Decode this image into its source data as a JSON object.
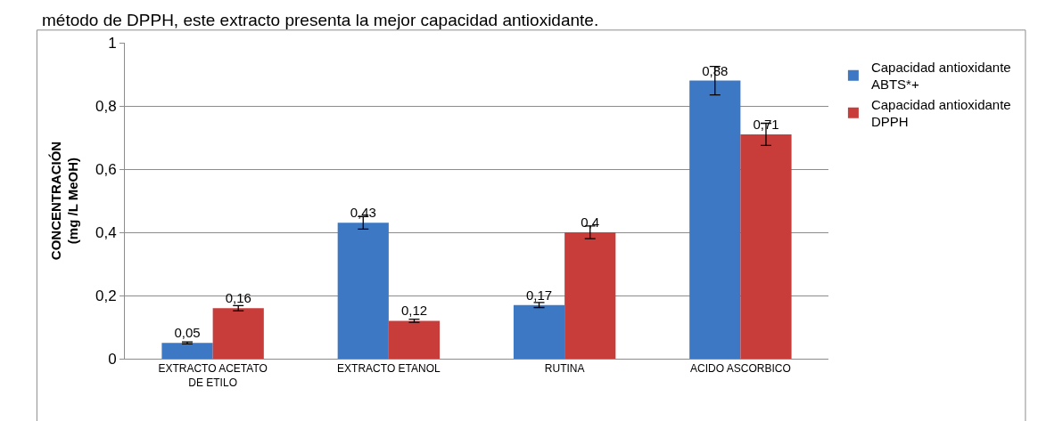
{
  "chart_data": {
    "type": "bar",
    "ylabel": "CONCENTRACIÓN\n(mg /L MeOH)",
    "annotations": [
      "método de DPPH, este extracto presenta la mejor capacidad antioxidante."
    ],
    "categories": [
      "EXTRACTO ACETATO DE ETILO",
      "EXTRACTO ETANOL",
      "RUTINA",
      "ACIDO ASCORBICO"
    ],
    "series": [
      {
        "name": "Capacidad antioxidante ABTS*+",
        "color": "#3d78c4",
        "values": [
          0.05,
          0.43,
          0.17,
          0.88
        ],
        "value_labels": [
          "0,05",
          "0,43",
          "0,17",
          "0,88"
        ],
        "errors": [
          0.003,
          0.02,
          0.008,
          0.045
        ]
      },
      {
        "name": "Capacidad antioxidante DPPH",
        "color": "#c83c3a",
        "values": [
          0.16,
          0.12,
          0.4,
          0.71
        ],
        "value_labels": [
          "0,16",
          "0,12",
          "0,4",
          "0,71"
        ],
        "errors": [
          0.008,
          0.005,
          0.02,
          0.035
        ]
      }
    ],
    "ylim": [
      0,
      1
    ],
    "yticks": [
      0,
      {
        "value": 0.2,
        "label": "0,2"
      },
      {
        "value": 0.4,
        "label": "0,4"
      },
      {
        "value": 0.6,
        "label": "0,6"
      },
      {
        "value": 0.8,
        "label": "0,8"
      },
      1
    ],
    "grid": "y",
    "legend": "right"
  }
}
